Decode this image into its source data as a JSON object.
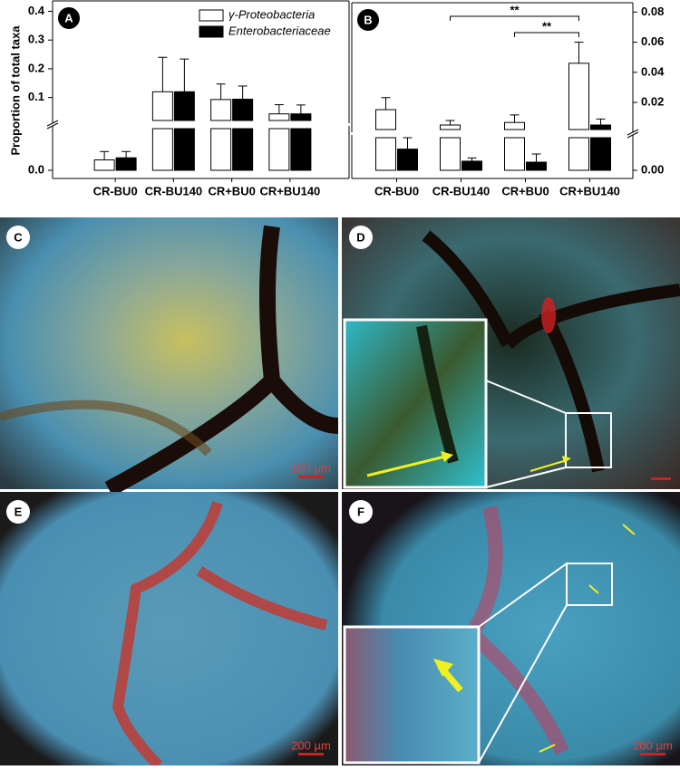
{
  "chart_data": [
    {
      "type": "bar",
      "panel": "A",
      "y_label": "Proportion of total taxa",
      "categories": [
        "CR-BU0",
        "CR-BU140",
        "CR+BU0",
        "CR+BU140"
      ],
      "series": [
        {
          "name": "γ-Proteobacteria",
          "color": "#ffffff",
          "values": [
            0.005,
            0.12,
            0.093,
            0.043
          ],
          "errors": [
            0.004,
            0.12,
            0.054,
            0.032
          ]
        },
        {
          "name": "Enterobacteriaceae",
          "color": "#000000",
          "values": [
            0.006,
            0.12,
            0.094,
            0.043
          ],
          "errors": [
            0.003,
            0.114,
            0.046,
            0.031
          ]
        }
      ],
      "ylim": [
        0,
        0.43
      ],
      "ybreak": 0.02,
      "yticks": [
        {
          "value": 0,
          "label": "0.0"
        },
        0.1,
        0.2,
        0.3,
        0.4
      ]
    },
    {
      "type": "bar",
      "panel": "B",
      "categories": [
        "CR-BU0",
        "CR-BU140",
        "CR+BU0",
        "CR+BU140"
      ],
      "series": [
        {
          "name": "γ-Proteobacteria",
          "color": "#ffffff",
          "values": [
            0.0152,
            0.005,
            0.0067,
            0.046
          ],
          "errors": [
            0.008,
            0.003,
            0.005,
            0.014
          ]
        },
        {
          "name": "Enterobacteriaceae",
          "color": "#000000",
          "values": [
            0.0013,
            0.00056,
            0.0005,
            0.005
          ],
          "errors": [
            0.0007,
            0.0002,
            0.0005,
            0.004
          ]
        }
      ],
      "ylim": [
        0,
        0.085
      ],
      "ybreak": 0.002,
      "yticks": [
        {
          "value": 0,
          "label": "0.00"
        },
        0.02,
        0.04,
        0.06,
        0.08
      ],
      "significance": [
        {
          "from": 1,
          "to": 3,
          "label": "**"
        },
        {
          "from": 2,
          "to": 3,
          "label": "**"
        }
      ]
    }
  ],
  "panels": [
    {
      "letter": "C",
      "scale_bar": "100 µm"
    },
    {
      "letter": "D"
    },
    {
      "letter": "E",
      "scale_bar": "200 µm"
    },
    {
      "letter": "F",
      "scale_bar": "200 µm"
    }
  ]
}
